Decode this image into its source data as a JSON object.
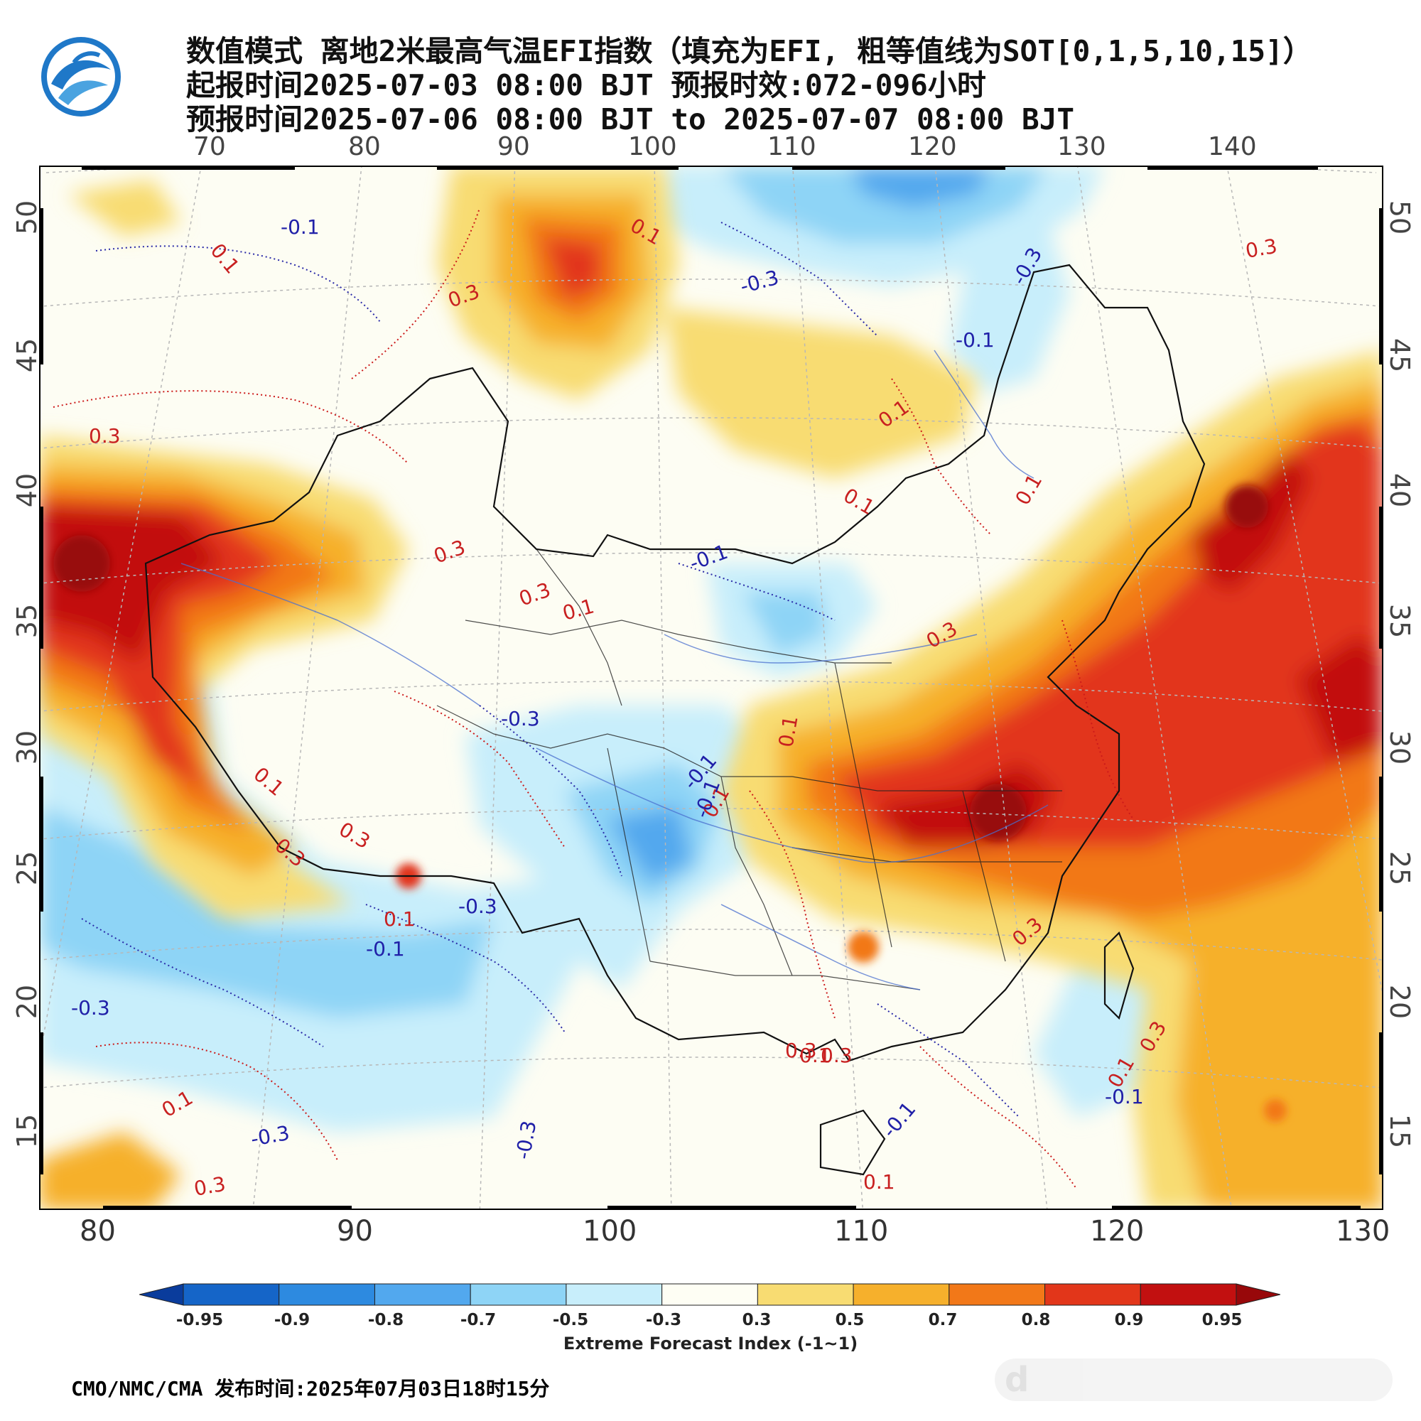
{
  "header": {
    "line1": "数值模式 离地2米最高气温EFI指数（填充为EFI, 粗等值线为SOT[0,1,5,10,15]）",
    "line2": "起报时间2025-07-03 08:00 BJT 预报时效:072-096小时",
    "line3": "预报时间2025-07-06 08:00 BJT to 2025-07-07 08:00 BJT"
  },
  "logo": {
    "icon": "cma-weather-logo",
    "colors": [
      "#1b6cc1",
      "#4aa3e0"
    ]
  },
  "axes": {
    "top_lon": [
      "70",
      "80",
      "90",
      "100",
      "110",
      "120",
      "130",
      "140"
    ],
    "bottom_lon": [
      "80",
      "90",
      "100",
      "110",
      "120",
      "130"
    ],
    "left_lat": [
      "50",
      "45",
      "40",
      "35",
      "30",
      "25",
      "20",
      "15"
    ],
    "right_lat": [
      "50",
      "45",
      "40",
      "35",
      "30",
      "25",
      "20",
      "15"
    ]
  },
  "contour_labels": {
    "red": [
      "0.1",
      "0.3",
      "0.1",
      "0.3",
      "0.1",
      "0.3",
      "0.1",
      "0.1",
      "0.3",
      "0.3",
      "0.1",
      "0.3",
      "0.1",
      "0.1",
      "0.3",
      "0.3",
      "0.1",
      "0.1",
      "0.3",
      "0.1",
      "0.3",
      "0.1",
      "0.3",
      "0.1",
      "0.3",
      "0.1",
      "0.3"
    ],
    "blue": [
      "-0.1",
      "-0.3",
      "-0.3",
      "-0.1",
      "-0.1",
      "-0.3",
      "-0.1",
      "-0.3",
      "-0.1",
      "-0.3",
      "-0.3",
      "-0.1",
      "-0.3",
      "-0.1",
      "-0.1"
    ]
  },
  "colorbar": {
    "title": "Extreme Forecast Index (-1~1)",
    "labels": [
      "-0.95",
      "-0.9",
      "-0.8",
      "-0.7",
      "-0.5",
      "-0.3",
      "0.3",
      "0.5",
      "0.7",
      "0.8",
      "0.9",
      "0.95"
    ],
    "colors": [
      "#0a3c9c",
      "#1565c8",
      "#2d8ae0",
      "#52a8ee",
      "#8ed4f6",
      "#c8eefb",
      "#fefef4",
      "#f8dc72",
      "#f6b02c",
      "#f27818",
      "#e2361a",
      "#c21010",
      "#98080a"
    ]
  },
  "footer": {
    "text": "CMO/NMC/CMA 发布时间:2025年07月03日18时15分"
  },
  "watermark": {
    "text": "d"
  },
  "palette": {
    "warm": "#e2361a",
    "cool": "#52a8ee",
    "neutral": "#fefef4"
  }
}
